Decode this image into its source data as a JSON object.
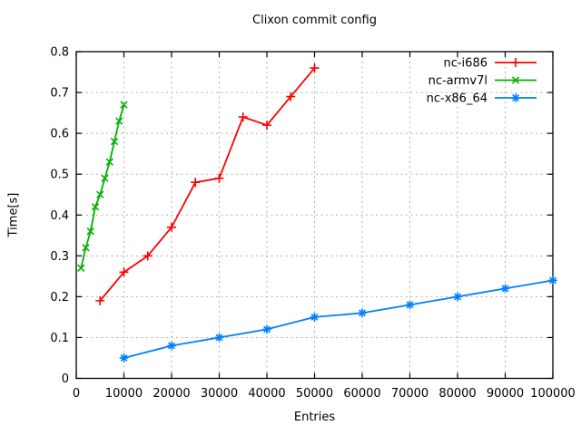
{
  "chart_data": {
    "type": "line",
    "title": "Clixon commit config",
    "xlabel": "Entries",
    "ylabel": "Time[s]",
    "xlim": [
      0,
      100000
    ],
    "ylim": [
      0,
      0.8
    ],
    "xticks": [
      0,
      10000,
      20000,
      30000,
      40000,
      50000,
      60000,
      70000,
      80000,
      90000,
      100000
    ],
    "xtick_labels": [
      "0",
      "10000",
      "20000",
      "30000",
      "40000",
      "50000",
      "60000",
      "70000",
      "80000",
      "90000",
      "100000"
    ],
    "yticks": [
      0,
      0.1,
      0.2,
      0.3,
      0.4,
      0.5,
      0.6,
      0.7,
      0.8
    ],
    "ytick_labels": [
      "0",
      "0.1",
      "0.2",
      "0.3",
      "0.4",
      "0.5",
      "0.6",
      "0.7",
      "0.8"
    ],
    "grid": true,
    "grid_color": "#b0b0b0",
    "axis_color": "#000000",
    "background_color": "#ffffff",
    "legend_position": "top-right-inside",
    "series": [
      {
        "name": "nc-i686",
        "color": "#ff0000",
        "marker": "plus",
        "x": [
          5000,
          10000,
          15000,
          20000,
          25000,
          30000,
          35000,
          40000,
          45000,
          50000
        ],
        "y": [
          0.19,
          0.26,
          0.3,
          0.37,
          0.48,
          0.49,
          0.64,
          0.62,
          0.69,
          0.76
        ]
      },
      {
        "name": "nc-armv7l",
        "color": "#00b000",
        "marker": "cross",
        "x": [
          1000,
          2000,
          3000,
          4000,
          5000,
          6000,
          7000,
          8000,
          9000,
          10000
        ],
        "y": [
          0.27,
          0.32,
          0.36,
          0.42,
          0.45,
          0.49,
          0.53,
          0.58,
          0.63,
          0.67
        ]
      },
      {
        "name": "nc-x86_64",
        "color": "#0080ff",
        "marker": "asterisk",
        "x": [
          10000,
          20000,
          30000,
          40000,
          50000,
          60000,
          70000,
          80000,
          90000,
          100000
        ],
        "y": [
          0.05,
          0.08,
          0.1,
          0.12,
          0.15,
          0.16,
          0.18,
          0.2,
          0.22,
          0.24
        ]
      }
    ]
  }
}
